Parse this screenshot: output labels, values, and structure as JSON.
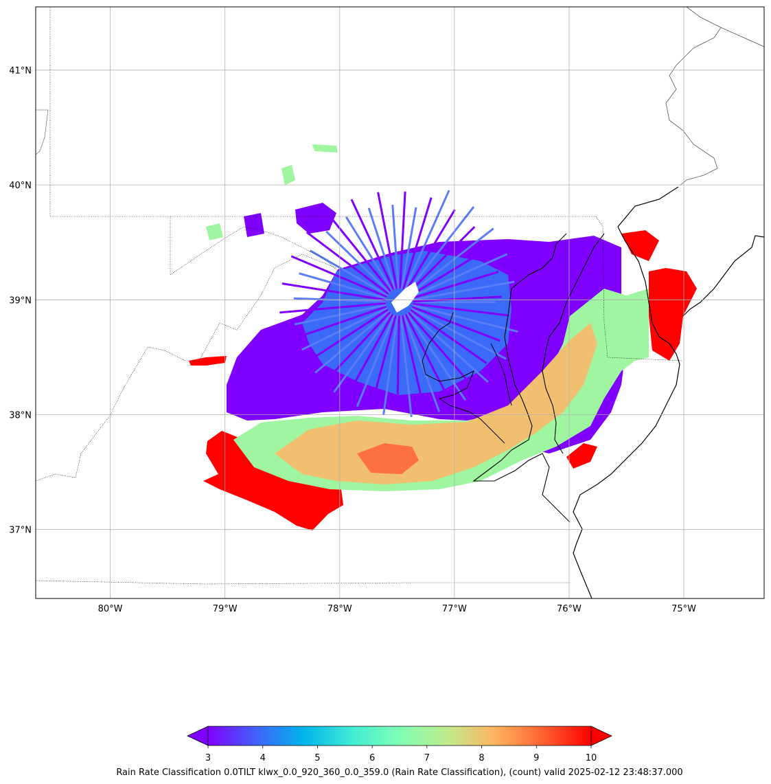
{
  "map": {
    "projection": "PlateCarree",
    "extent_lon": [
      -80.65,
      -74.3
    ],
    "extent_lat": [
      36.4,
      41.55
    ],
    "gridlines": true,
    "lon_ticks": [
      {
        "value": -80,
        "label": "80°W"
      },
      {
        "value": -79,
        "label": "79°W"
      },
      {
        "value": -78,
        "label": "78°W"
      },
      {
        "value": -77,
        "label": "77°W"
      },
      {
        "value": -76,
        "label": "76°W"
      },
      {
        "value": -75,
        "label": "75°W"
      }
    ],
    "lat_ticks": [
      {
        "value": 41,
        "label": "41°N"
      },
      {
        "value": 40,
        "label": "40°N"
      },
      {
        "value": 39,
        "label": "39°N"
      },
      {
        "value": 38,
        "label": "38°N"
      },
      {
        "value": 37,
        "label": "37°N"
      }
    ],
    "radar": {
      "site": "klwx",
      "center_lon": -77.48,
      "center_lat": 38.98,
      "field": "Rain Rate Classification",
      "units": "count",
      "value_range": [
        3,
        10
      ],
      "colormap": "rainbow",
      "regions": [
        {
          "name": "near-radar ring",
          "value": 4
        },
        {
          "name": "main echo area",
          "value": 3
        },
        {
          "name": "southern band",
          "value": 8
        },
        {
          "name": "southern band core",
          "value": 9
        },
        {
          "name": "band edges",
          "value": 7
        },
        {
          "name": "southwest far range",
          "value": 10
        },
        {
          "name": "eastern far range",
          "value": 10
        },
        {
          "name": "eastern shore",
          "value": 7
        }
      ]
    }
  },
  "colorbar": {
    "min": 3,
    "max": 10,
    "extend": "both",
    "ticks": [
      "3",
      "4",
      "5",
      "6",
      "7",
      "8",
      "9",
      "10"
    ],
    "colors": [
      "#8000ff",
      "#4062fa",
      "#00b5eb",
      "#40ecd4",
      "#80ffb4",
      "#c0eb8d",
      "#ffb360",
      "#ff6030",
      "#ff0000"
    ],
    "caption": "Rain Rate Classification 0.0TILT klwx_0.0_920_360_0.0_359.0 (Rain Rate Classification), (count) valid 2025-02-12 23:48:37.000"
  }
}
